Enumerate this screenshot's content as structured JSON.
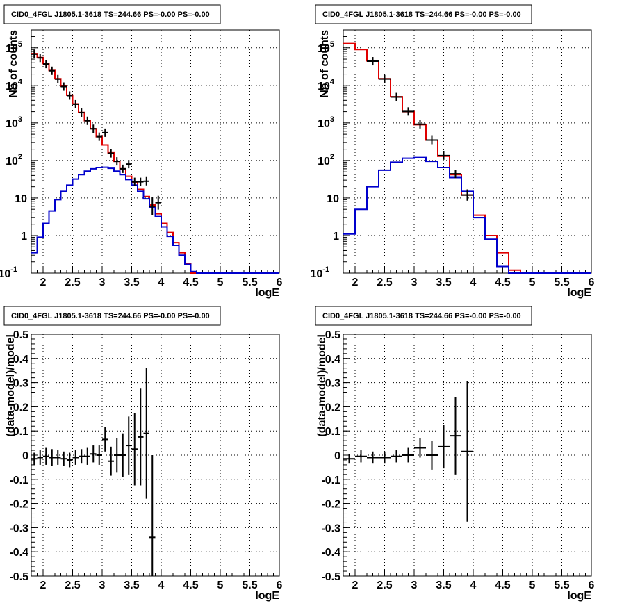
{
  "chart_data": [
    {
      "type": "line",
      "title": "CID0_4FGL J1805.1-3618 TS=244.66 PS=-0.00 PS=-0.00",
      "xlabel": "logE",
      "ylabel": "Nb of counts",
      "xlim": [
        1.8,
        6.0
      ],
      "ylim": [
        0.1,
        300000
      ],
      "yscale": "log",
      "grid": true,
      "x_ticks": [
        "2",
        "2.5",
        "3",
        "3.5",
        "4",
        "4.5",
        "5",
        "5.5",
        "6"
      ],
      "y_ticks": [
        {
          "v": 0.1,
          "b": "10",
          "e": "-1"
        },
        {
          "v": 1,
          "b": "1",
          "e": ""
        },
        {
          "v": 10,
          "b": "10",
          "e": ""
        },
        {
          "v": 100,
          "b": "10",
          "e": "2"
        },
        {
          "v": 1000,
          "b": "10",
          "e": "3"
        },
        {
          "v": 10000,
          "b": "10",
          "e": "4"
        },
        {
          "v": 100000,
          "b": "10",
          "e": "5"
        }
      ],
      "bin_edges": [
        1.8,
        1.9,
        2.0,
        2.1,
        2.2,
        2.3,
        2.4,
        2.5,
        2.6,
        2.7,
        2.8,
        2.9,
        3.0,
        3.1,
        3.2,
        3.3,
        3.4,
        3.5,
        3.6,
        3.7,
        3.8,
        3.9,
        4.0,
        4.1,
        4.2,
        4.3,
        4.4,
        4.5,
        4.6,
        4.7,
        4.8,
        4.9,
        5.0,
        5.1,
        5.2,
        5.3,
        5.4,
        5.5,
        5.6,
        5.7,
        5.8,
        5.9,
        6.0
      ],
      "series": [
        {
          "color": "#e00000",
          "style": "step",
          "values": [
            70000,
            55000,
            38000,
            25000,
            15000,
            9500,
            5500,
            3200,
            1900,
            1150,
            700,
            430,
            260,
            160,
            95,
            60,
            38,
            26,
            17,
            11,
            6.5,
            3.8,
            2.1,
            1.2,
            0.65,
            0.35,
            0.18,
            0.1,
            0.1,
            0.1,
            0.1,
            0.1,
            0.1,
            0.1,
            0.1,
            0.1,
            0.1,
            0.1,
            0.1,
            0.1,
            0.1,
            0.1
          ]
        },
        {
          "color": "#0000cc",
          "style": "step",
          "values": [
            0.35,
            0.9,
            2.1,
            4.5,
            9,
            15,
            22,
            32,
            42,
            52,
            60,
            65,
            66,
            62,
            52,
            42,
            31,
            22,
            15,
            9.5,
            5.5,
            3.2,
            1.7,
            0.95,
            0.55,
            0.3,
            0.17,
            0.11,
            0.1,
            0.1,
            0.1,
            0.1,
            0.1,
            0.1,
            0.1,
            0.1,
            0.1,
            0.1,
            0.1,
            0.1,
            0.1,
            0.1
          ]
        }
      ],
      "data_points": [
        {
          "x": 1.85,
          "y": 68000,
          "err": 260
        },
        {
          "x": 1.95,
          "y": 54000,
          "err": 230
        },
        {
          "x": 2.05,
          "y": 37000,
          "err": 190
        },
        {
          "x": 2.15,
          "y": 24500,
          "err": 160
        },
        {
          "x": 2.25,
          "y": 14700,
          "err": 120
        },
        {
          "x": 2.35,
          "y": 9300,
          "err": 96
        },
        {
          "x": 2.45,
          "y": 5350,
          "err": 73
        },
        {
          "x": 2.55,
          "y": 3150,
          "err": 56
        },
        {
          "x": 2.65,
          "y": 1880,
          "err": 43
        },
        {
          "x": 2.75,
          "y": 1140,
          "err": 34
        },
        {
          "x": 2.85,
          "y": 700,
          "err": 26
        },
        {
          "x": 2.95,
          "y": 430,
          "err": 21
        },
        {
          "x": 3.05,
          "y": 550,
          "err": 23
        },
        {
          "x": 3.15,
          "y": 155,
          "err": 12
        },
        {
          "x": 3.25,
          "y": 95,
          "err": 10
        },
        {
          "x": 3.35,
          "y": 60,
          "err": 8
        },
        {
          "x": 3.45,
          "y": 80,
          "err": 9
        },
        {
          "x": 3.55,
          "y": 27,
          "err": 5
        },
        {
          "x": 3.65,
          "y": 27,
          "err": 6
        },
        {
          "x": 3.75,
          "y": 28,
          "err": 6
        },
        {
          "x": 3.85,
          "y": 6,
          "err": 3
        },
        {
          "x": 3.95,
          "y": 7.5,
          "err": 3
        }
      ]
    },
    {
      "type": "line",
      "title": "CID0_4FGL J1805.1-3618 TS=244.66 PS=-0.00 PS=-0.00",
      "xlabel": "logE",
      "ylabel": "Nb of counts",
      "xlim": [
        1.8,
        6.0
      ],
      "ylim": [
        0.1,
        300000
      ],
      "yscale": "log",
      "grid": true,
      "x_ticks": [
        "2",
        "2.5",
        "3",
        "3.5",
        "4",
        "4.5",
        "5",
        "5.5",
        "6"
      ],
      "y_ticks": [
        {
          "v": 0.1,
          "b": "10",
          "e": "-1"
        },
        {
          "v": 1,
          "b": "1",
          "e": ""
        },
        {
          "v": 10,
          "b": "10",
          "e": ""
        },
        {
          "v": 100,
          "b": "10",
          "e": "2"
        },
        {
          "v": 1000,
          "b": "10",
          "e": "3"
        },
        {
          "v": 10000,
          "b": "10",
          "e": "4"
        },
        {
          "v": 100000,
          "b": "10",
          "e": "5"
        }
      ],
      "bin_edges": [
        1.8,
        2.0,
        2.2,
        2.4,
        2.6,
        2.8,
        3.0,
        3.2,
        3.4,
        3.6,
        3.8,
        4.0,
        4.2,
        4.4,
        4.6,
        4.8,
        5.0,
        5.2,
        5.4,
        5.6,
        5.8,
        6.0
      ],
      "series": [
        {
          "color": "#e00000",
          "style": "step",
          "values": [
            130000,
            90000,
            45000,
            15000,
            5000,
            2000,
            900,
            350,
            130,
            42,
            12,
            3.5,
            1.0,
            0.35,
            0.12,
            0.1,
            0.1,
            0.1,
            0.1,
            0.1,
            0.1
          ]
        },
        {
          "color": "#0000cc",
          "style": "step",
          "values": [
            1.1,
            5,
            20,
            55,
            90,
            115,
            120,
            95,
            65,
            35,
            15,
            3,
            0.8,
            0.15,
            0.1,
            0.1,
            0.1,
            0.1,
            0.1,
            0.1,
            0.1
          ]
        }
      ],
      "data_points": [
        {
          "x": 2.3,
          "y": 44000,
          "err": 210
        },
        {
          "x": 2.5,
          "y": 14800,
          "err": 120
        },
        {
          "x": 2.7,
          "y": 4900,
          "err": 70
        },
        {
          "x": 2.9,
          "y": 2020,
          "err": 45
        },
        {
          "x": 3.1,
          "y": 920,
          "err": 30
        },
        {
          "x": 3.3,
          "y": 350,
          "err": 19
        },
        {
          "x": 3.5,
          "y": 135,
          "err": 12
        },
        {
          "x": 3.7,
          "y": 44,
          "err": 7
        },
        {
          "x": 3.9,
          "y": 12,
          "err": 4
        }
      ]
    },
    {
      "type": "scatter",
      "title": "CID0_4FGL J1805.1-3618 TS=244.66 PS=-0.00 PS=-0.00",
      "xlabel": "logE",
      "ylabel": "(data-model)/model",
      "xlim": [
        1.8,
        6.0
      ],
      "ylim": [
        -0.5,
        0.5
      ],
      "grid": true,
      "x_ticks": [
        "2",
        "2.5",
        "3",
        "3.5",
        "4",
        "4.5",
        "5",
        "5.5",
        "6"
      ],
      "y_ticks": [
        "-0.5",
        "-0.4",
        "-0.3",
        "-0.2",
        "-0.1",
        "0",
        "0.1",
        "0.2",
        "0.3",
        "0.4",
        "0.5"
      ],
      "points": [
        {
          "x": 1.85,
          "y": -0.015,
          "err": 0.025
        },
        {
          "x": 1.95,
          "y": -0.01,
          "err": 0.03
        },
        {
          "x": 2.05,
          "y": -0.005,
          "err": 0.035
        },
        {
          "x": 2.15,
          "y": -0.01,
          "err": 0.035
        },
        {
          "x": 2.25,
          "y": -0.01,
          "err": 0.03
        },
        {
          "x": 2.35,
          "y": -0.015,
          "err": 0.03
        },
        {
          "x": 2.45,
          "y": -0.02,
          "err": 0.03
        },
        {
          "x": 2.55,
          "y": -0.01,
          "err": 0.03
        },
        {
          "x": 2.65,
          "y": -0.005,
          "err": 0.03
        },
        {
          "x": 2.75,
          "y": -0.005,
          "err": 0.035
        },
        {
          "x": 2.85,
          "y": 0.005,
          "err": 0.035
        },
        {
          "x": 2.95,
          "y": 0.0,
          "err": 0.04
        },
        {
          "x": 3.05,
          "y": 0.065,
          "err": 0.05
        },
        {
          "x": 3.15,
          "y": -0.025,
          "err": 0.06
        },
        {
          "x": 3.25,
          "y": 0.0,
          "err": 0.07
        },
        {
          "x": 3.35,
          "y": 0.0,
          "err": 0.09
        },
        {
          "x": 3.45,
          "y": 0.04,
          "err": 0.12
        },
        {
          "x": 3.55,
          "y": 0.025,
          "err": 0.15
        },
        {
          "x": 3.65,
          "y": 0.075,
          "err": 0.2
        },
        {
          "x": 3.75,
          "y": 0.09,
          "err": 0.27
        },
        {
          "x": 3.85,
          "y": -0.34,
          "err": 0.34
        }
      ]
    },
    {
      "type": "scatter",
      "title": "CID0_4FGL J1805.1-3618 TS=244.66 PS=-0.00 PS=-0.00",
      "xlabel": "logE",
      "ylabel": "(data-model)/model",
      "xlim": [
        1.8,
        6.0
      ],
      "ylim": [
        -0.5,
        0.5
      ],
      "grid": true,
      "x_ticks": [
        "2",
        "2.5",
        "3",
        "3.5",
        "4",
        "4.5",
        "5",
        "5.5",
        "6"
      ],
      "y_ticks": [
        "-0.5",
        "-0.4",
        "-0.3",
        "-0.2",
        "-0.1",
        "0",
        "0.1",
        "0.2",
        "0.3",
        "0.4",
        "0.5"
      ],
      "points": [
        {
          "x": 1.9,
          "y": -0.015,
          "err": 0.02
        },
        {
          "x": 2.1,
          "y": -0.005,
          "err": 0.025
        },
        {
          "x": 2.3,
          "y": -0.01,
          "err": 0.025
        },
        {
          "x": 2.5,
          "y": -0.01,
          "err": 0.025
        },
        {
          "x": 2.7,
          "y": -0.005,
          "err": 0.025
        },
        {
          "x": 2.9,
          "y": 0.0,
          "err": 0.03
        },
        {
          "x": 3.1,
          "y": 0.03,
          "err": 0.04
        },
        {
          "x": 3.3,
          "y": 0.0,
          "err": 0.06
        },
        {
          "x": 3.5,
          "y": 0.035,
          "err": 0.09
        },
        {
          "x": 3.7,
          "y": 0.08,
          "err": 0.16
        },
        {
          "x": 3.9,
          "y": 0.015,
          "err": 0.29
        }
      ]
    }
  ]
}
